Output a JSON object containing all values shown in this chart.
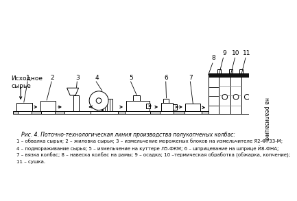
{
  "title": "Рис. 4. Поточно-технологическая линия производства полукопченых колбас:",
  "caption_lines": [
    "1 – обвалка сырья; 2 – жиловка сырья; 3 – измельчение мороженых блоков на измельчителе Я2-ФРЗ3-М;",
    "4 – подмораживание сырья; 5 – измельчение на куттере Л5-ФКМ; 6 – шприцевание на шприце Й8-ФНА;",
    "7 – вязка колбас; 8 – навеска колбас на рамы; 9 – осадка; 10 –термическая обработка (обжарка, копчение);",
    "11 – сушка."
  ],
  "source_label": "Исходное\nсырье",
  "output_label": "на реализацию",
  "bg_color": "#ffffff",
  "line_color": "#000000",
  "numbers": [
    "8",
    "9",
    "10",
    "11"
  ]
}
